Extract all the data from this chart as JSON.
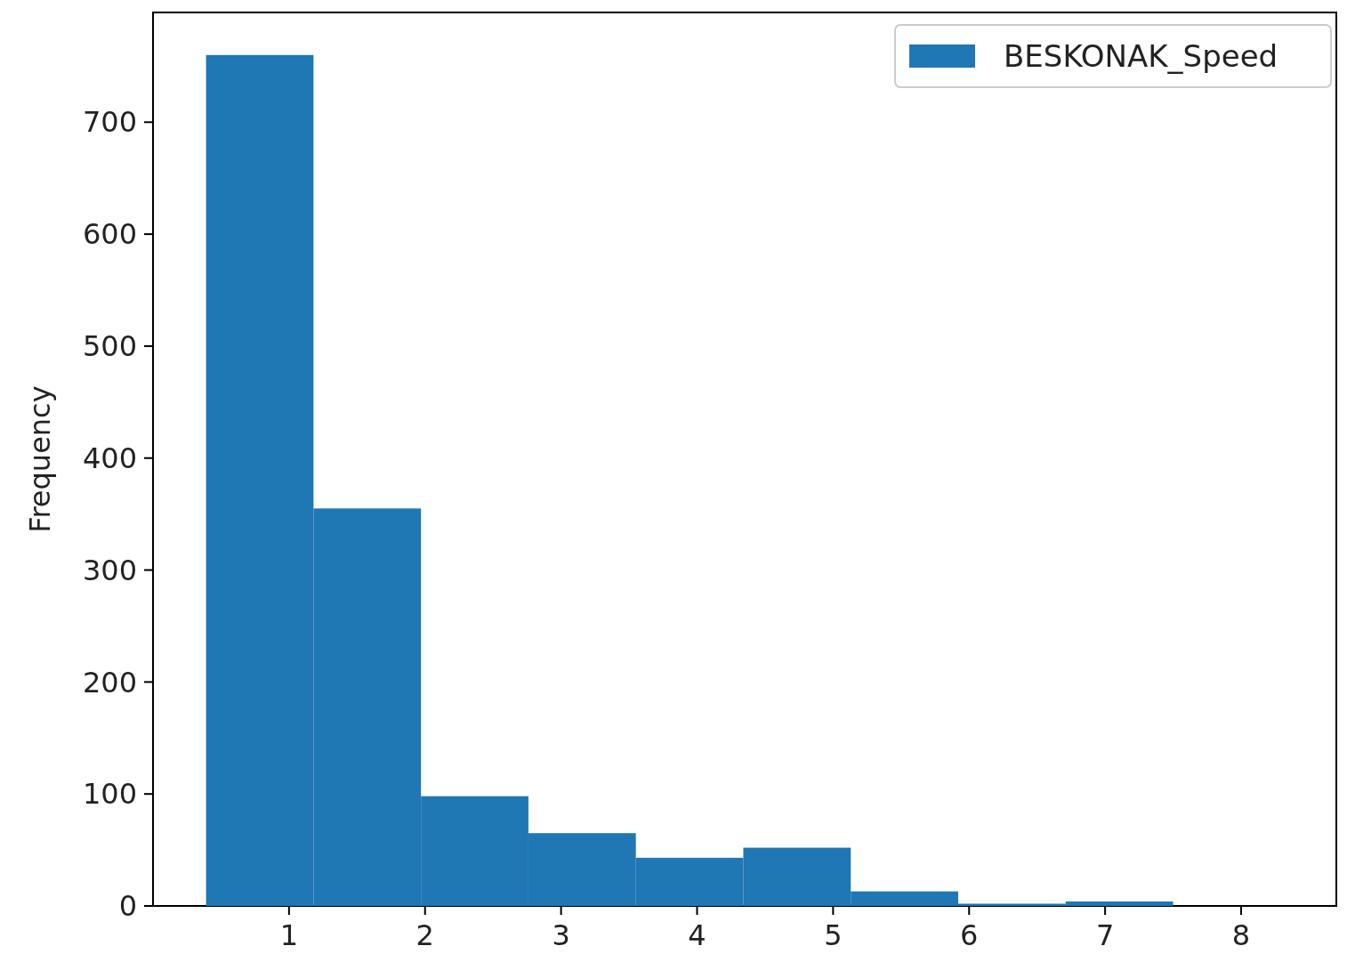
{
  "chart_data": {
    "type": "histogram",
    "ylabel": "Frequency",
    "bins": [
      0.39,
      1.18,
      1.97,
      2.76,
      3.55,
      4.34,
      5.13,
      5.92,
      6.71,
      7.5
    ],
    "series": [
      {
        "name": "BESKONAK_Speed",
        "color": "#1f77b4",
        "values": [
          760,
          355,
          98,
          65,
          43,
          52,
          13,
          2,
          4
        ]
      }
    ],
    "xlim": [
      0,
      8.7
    ],
    "ylim": [
      0,
      798
    ],
    "xticks": [
      1,
      2,
      3,
      4,
      5,
      6,
      7,
      8
    ],
    "yticks": [
      0,
      100,
      200,
      300,
      400,
      500,
      600,
      700
    ],
    "legend": "top right"
  }
}
